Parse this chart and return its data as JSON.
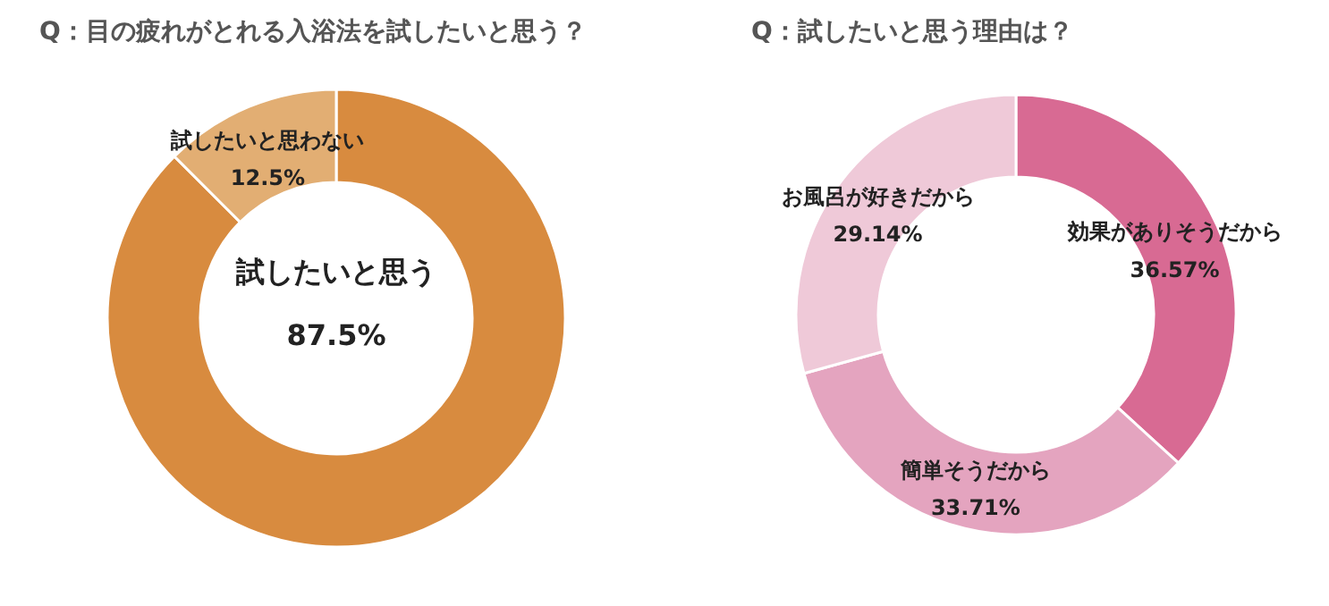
{
  "chart_data": [
    {
      "type": "donut",
      "title": "Q：目の疲れがとれる入浴法を試したいと思う？",
      "categories": [
        "試したいと思う",
        "試したいと思わない"
      ],
      "values": [
        87.5,
        12.5
      ],
      "colors": [
        "#d88b3f",
        "#e2ae73"
      ],
      "value_labels": [
        "87.5%",
        "12.5%"
      ]
    },
    {
      "type": "donut",
      "title": "Q：試したいと思う理由は？",
      "categories": [
        "効果がありそうだから",
        "簡単そうだから",
        "お風呂が好きだから"
      ],
      "values": [
        36.57,
        33.71,
        29.14
      ],
      "colors": [
        "#d86a93",
        "#e4a4bf",
        "#efc9d8"
      ],
      "value_labels": [
        "36.57%",
        "33.71%",
        "29.14%"
      ]
    }
  ]
}
